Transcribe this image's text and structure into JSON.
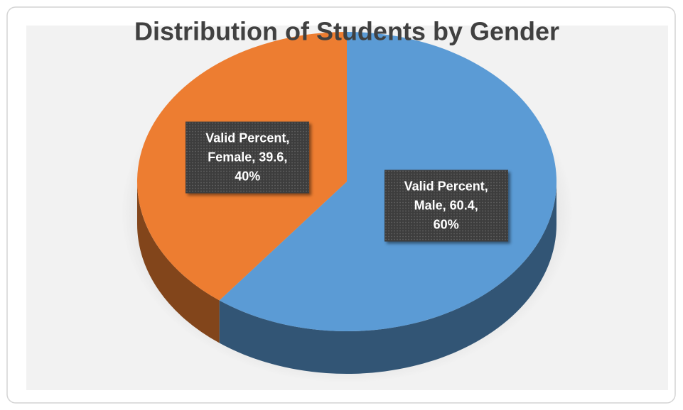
{
  "chart_data": {
    "type": "pie3d",
    "title": "Distribution of Students by Gender",
    "values": [
      60.4,
      39.6
    ],
    "value_labels": [
      "Valid Percent, Male, 60.4, 60%",
      "Valid Percent, Female, 39.6, 40%"
    ],
    "colors": [
      "#5b9bd5",
      "#ed7d31"
    ]
  }
}
